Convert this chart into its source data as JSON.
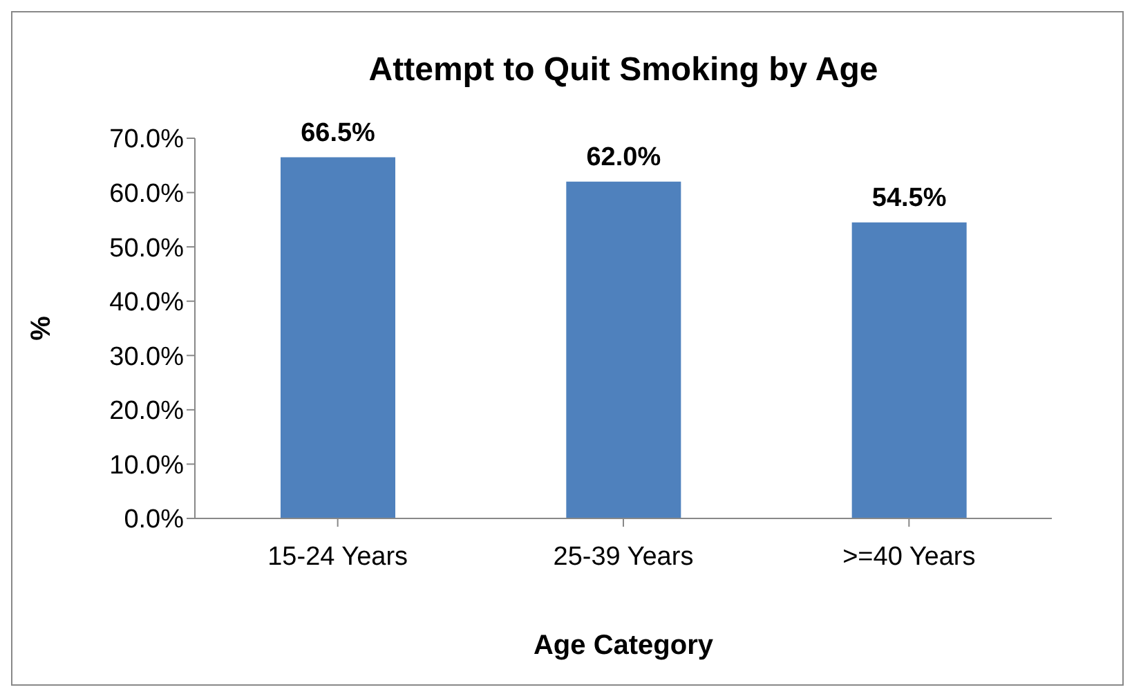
{
  "chart_data": {
    "type": "bar",
    "title": "Attempt to Quit Smoking by Age",
    "xlabel": "Age Category",
    "ylabel": "%",
    "categories": [
      "15-24 Years",
      "25-39 Years",
      ">=40 Years"
    ],
    "values": [
      66.5,
      62.0,
      54.5
    ],
    "value_labels": [
      "66.5%",
      "62.0%",
      "54.5%"
    ],
    "color": "#4f81bd",
    "ylim": [
      0,
      70
    ],
    "yticks": [
      {
        "value": 0,
        "label": "0.0%"
      },
      {
        "value": 10,
        "label": "10.0%"
      },
      {
        "value": 20,
        "label": "20.0%"
      },
      {
        "value": 30,
        "label": "30.0%"
      },
      {
        "value": 40,
        "label": "40.0%"
      },
      {
        "value": 50,
        "label": "50.0%"
      },
      {
        "value": 60,
        "label": "60.0%"
      },
      {
        "value": 70,
        "label": "70.0%"
      }
    ],
    "grid": false,
    "legend": false
  }
}
